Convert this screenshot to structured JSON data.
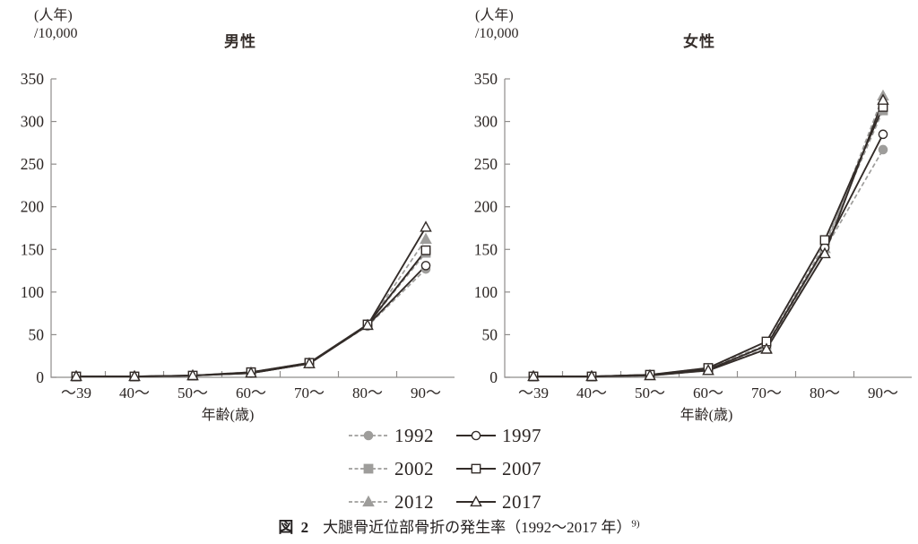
{
  "colors": {
    "solid_line": "#332c29",
    "dashed_line": "#9e9d9b",
    "axis": "#8f8d8b",
    "text": "#2b2523"
  },
  "chart_data": [
    {
      "type": "line",
      "title": "男性",
      "unit_lines": [
        "(人年)",
        "/10,000"
      ],
      "xlabel": "年齢(歳)",
      "categories": [
        "〜39",
        "40〜",
        "50〜",
        "60〜",
        "70〜",
        "80〜",
        "90〜"
      ],
      "ylim": [
        0,
        350
      ],
      "yticks": [
        0,
        50,
        100,
        150,
        200,
        250,
        300,
        350
      ],
      "grid": false,
      "series": [
        {
          "name": "1992",
          "values": [
            1,
            1,
            2,
            6,
            17,
            60,
            127
          ]
        },
        {
          "name": "1997",
          "values": [
            1,
            1,
            2,
            5,
            16,
            61,
            131
          ]
        },
        {
          "name": "2002",
          "values": [
            1,
            1,
            2,
            6,
            17,
            62,
            146
          ]
        },
        {
          "name": "2007",
          "values": [
            1,
            1,
            2,
            6,
            17,
            62,
            149
          ]
        },
        {
          "name": "2012",
          "values": [
            1,
            1,
            2,
            5,
            16,
            61,
            162
          ]
        },
        {
          "name": "2017",
          "values": [
            1,
            1,
            2,
            5,
            16,
            61,
            176
          ]
        }
      ]
    },
    {
      "type": "line",
      "title": "女性",
      "unit_lines": [
        "(人年)",
        "/10,000"
      ],
      "xlabel": "年齢(歳)",
      "categories": [
        "〜39",
        "40〜",
        "50〜",
        "60〜",
        "70〜",
        "80〜",
        "90〜"
      ],
      "ylim": [
        0,
        350
      ],
      "yticks": [
        0,
        50,
        100,
        150,
        200,
        250,
        300,
        350
      ],
      "grid": false,
      "series": [
        {
          "name": "1992",
          "values": [
            1,
            1,
            3,
            11,
            38,
            150,
            267
          ]
        },
        {
          "name": "1997",
          "values": [
            1,
            1,
            3,
            9,
            37,
            152,
            285
          ]
        },
        {
          "name": "2002",
          "values": [
            1,
            1,
            3,
            10,
            38,
            156,
            313
          ]
        },
        {
          "name": "2007",
          "values": [
            1,
            1,
            3,
            11,
            42,
            161,
            317
          ]
        },
        {
          "name": "2012",
          "values": [
            1,
            1,
            2,
            8,
            34,
            151,
            330
          ]
        },
        {
          "name": "2017",
          "values": [
            1,
            1,
            2,
            8,
            33,
            145,
            325
          ]
        }
      ]
    }
  ],
  "series_styles": {
    "1992": {
      "line": "dashed",
      "marker": "circle",
      "fill": "filled"
    },
    "1997": {
      "line": "solid",
      "marker": "circle",
      "fill": "open"
    },
    "2002": {
      "line": "dashed",
      "marker": "square",
      "fill": "filled"
    },
    "2007": {
      "line": "solid",
      "marker": "square",
      "fill": "open"
    },
    "2012": {
      "line": "dashed",
      "marker": "triangle",
      "fill": "filled"
    },
    "2017": {
      "line": "solid",
      "marker": "triangle",
      "fill": "open"
    }
  },
  "legend": {
    "items": [
      {
        "year": "1992"
      },
      {
        "year": "1997"
      },
      {
        "year": "2002"
      },
      {
        "year": "2007"
      },
      {
        "year": "2012"
      },
      {
        "year": "2017"
      }
    ]
  },
  "caption": {
    "fig_label": "図 2",
    "text": "大腿骨近位部骨折の発生率（1992〜2017 年）",
    "superscript": "9)"
  }
}
